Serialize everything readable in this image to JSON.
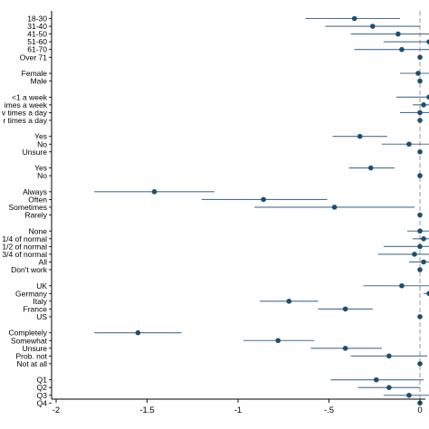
{
  "chart_data": {
    "type": "scatter",
    "style": "coefficient-plot",
    "xlim": [
      -2.05,
      0.05
    ],
    "xticks": [
      -2,
      -1.5,
      -1,
      -0.5,
      0
    ],
    "xtick_labels": [
      "-2",
      "-1.5",
      "-1",
      "-.5",
      "0"
    ],
    "reference_line_x": 0,
    "colors": {
      "marker": "#1f4e6e",
      "ci": "#4a6f8f",
      "refline": "#999999",
      "axis": "#000000"
    },
    "groups": [
      {
        "rows": [
          {
            "label": "18-30",
            "est": -0.36,
            "lo": -0.63,
            "hi": -0.11
          },
          {
            "label": "31-40",
            "est": -0.26,
            "lo": -0.52,
            "hi": 0.0
          },
          {
            "label": "41-50",
            "est": -0.12,
            "lo": -0.38,
            "hi": 0.14
          },
          {
            "label": "51-60",
            "est": 0.05,
            "lo": -0.2,
            "hi": 0.3
          },
          {
            "label": "61-70",
            "est": -0.1,
            "lo": -0.36,
            "hi": 0.15
          },
          {
            "label": "Over 71",
            "est": 0.0,
            "lo": 0.0,
            "hi": 0.0
          }
        ]
      },
      {
        "rows": [
          {
            "label": "Female",
            "est": -0.01,
            "lo": -0.11,
            "hi": 0.08
          },
          {
            "label": "Male",
            "est": 0.0,
            "lo": 0.0,
            "hi": 0.0
          }
        ]
      },
      {
        "rows": [
          {
            "label": "<1 a week",
            "est": 0.05,
            "lo": -0.13,
            "hi": 0.22
          },
          {
            "label": "imes a week",
            "est": 0.02,
            "lo": -0.04,
            "hi": 0.08
          },
          {
            "label": "v times a day",
            "est": 0.0,
            "lo": -0.11,
            "hi": 0.1
          },
          {
            "label": "r times a day",
            "est": 0.0,
            "lo": 0.0,
            "hi": 0.0
          }
        ]
      },
      {
        "rows": [
          {
            "label": "Yes",
            "est": -0.33,
            "lo": -0.48,
            "hi": -0.18
          },
          {
            "label": "No",
            "est": -0.06,
            "lo": -0.21,
            "hi": 0.09
          },
          {
            "label": "Unsure",
            "est": 0.0,
            "lo": 0.0,
            "hi": 0.0
          }
        ]
      },
      {
        "rows": [
          {
            "label": "Yes",
            "est": -0.27,
            "lo": -0.39,
            "hi": -0.14
          },
          {
            "label": "No",
            "est": 0.0,
            "lo": 0.0,
            "hi": 0.0
          }
        ]
      },
      {
        "rows": [
          {
            "label": "Always",
            "est": -1.46,
            "lo": -1.79,
            "hi": -1.13
          },
          {
            "label": "Often",
            "est": -0.86,
            "lo": -1.2,
            "hi": -0.51
          },
          {
            "label": "Sometimes",
            "est": -0.47,
            "lo": -0.91,
            "hi": -0.03
          },
          {
            "label": "Rarely",
            "est": 0.0,
            "lo": 0.0,
            "hi": 0.0
          }
        ]
      },
      {
        "rows": [
          {
            "label": "None",
            "est": 0.0,
            "lo": -0.07,
            "hi": 0.07
          },
          {
            "label": "1/4 of normal",
            "est": 0.02,
            "lo": -0.04,
            "hi": 0.08
          },
          {
            "label": "1/2 of normal",
            "est": 0.0,
            "lo": -0.2,
            "hi": 0.2
          },
          {
            "label": "3/4 of normal",
            "est": -0.03,
            "lo": -0.23,
            "hi": 0.17
          },
          {
            "label": "All",
            "est": 0.02,
            "lo": -0.06,
            "hi": 0.1
          },
          {
            "label": "Don't work",
            "est": 0.0,
            "lo": 0.0,
            "hi": 0.0
          }
        ]
      },
      {
        "rows": [
          {
            "label": "UK",
            "est": -0.1,
            "lo": -0.31,
            "hi": 0.1
          },
          {
            "label": "Germany",
            "est": 0.05,
            "lo": 0.02,
            "hi": 0.08
          },
          {
            "label": "Italy",
            "est": -0.72,
            "lo": -0.88,
            "hi": -0.56
          },
          {
            "label": "France",
            "est": -0.41,
            "lo": -0.56,
            "hi": -0.26
          },
          {
            "label": "US",
            "est": 0.0,
            "lo": 0.0,
            "hi": 0.0
          }
        ]
      },
      {
        "rows": [
          {
            "label": "Completely",
            "est": -1.55,
            "lo": -1.79,
            "hi": -1.31
          },
          {
            "label": "Somewhat",
            "est": -0.78,
            "lo": -0.97,
            "hi": -0.58
          },
          {
            "label": "Unsure",
            "est": -0.41,
            "lo": -0.6,
            "hi": -0.21
          },
          {
            "label": "Prob. not",
            "est": -0.17,
            "lo": -0.38,
            "hi": 0.04
          },
          {
            "label": "Not at all",
            "est": 0.0,
            "lo": 0.0,
            "hi": 0.0
          }
        ]
      },
      {
        "rows": [
          {
            "label": "Q1",
            "est": -0.24,
            "lo": -0.49,
            "hi": 0.02
          },
          {
            "label": "Q2",
            "est": -0.17,
            "lo": -0.34,
            "hi": 0.0
          },
          {
            "label": "Q3",
            "est": -0.06,
            "lo": -0.2,
            "hi": 0.08
          },
          {
            "label": "Q4",
            "est": 0.0,
            "lo": 0.0,
            "hi": 0.0
          }
        ]
      }
    ]
  }
}
